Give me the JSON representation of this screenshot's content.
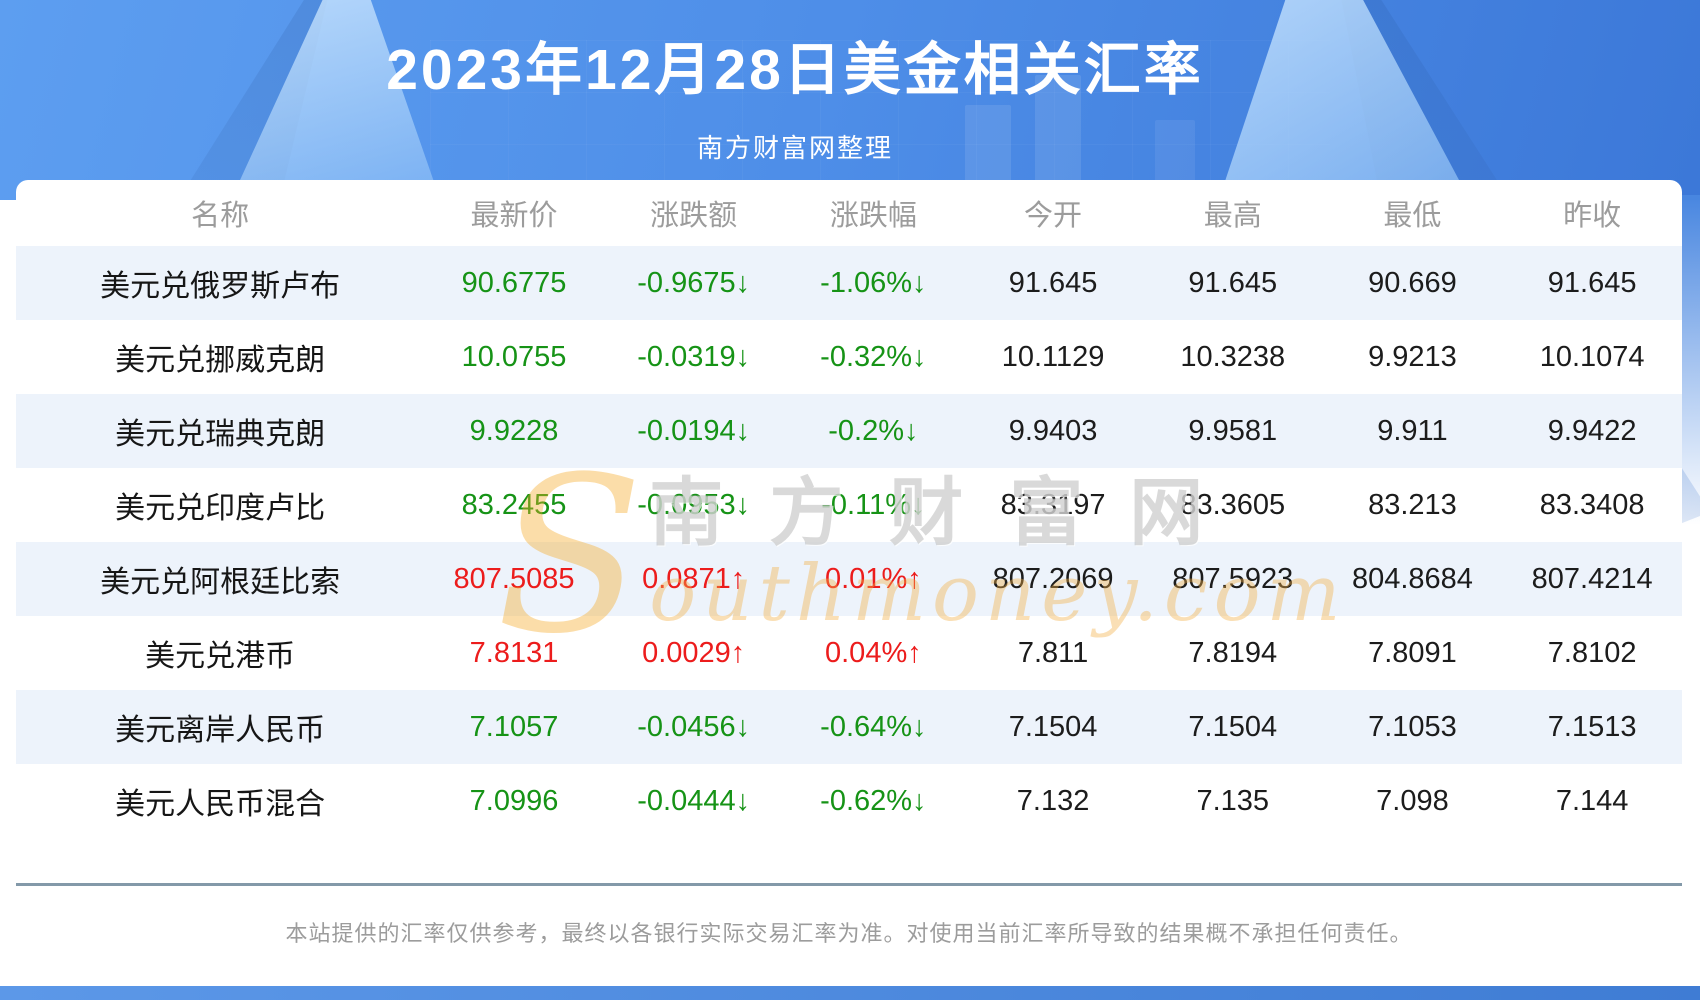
{
  "header": {
    "title": "2023年12月28日美金相关汇率",
    "subtitle": "南方财富网整理"
  },
  "chart_data": {
    "type": "table",
    "title": "2023年12月28日美金相关汇率",
    "columns": [
      "名称",
      "最新价",
      "涨跌额",
      "涨跌幅",
      "今开",
      "最高",
      "最低",
      "昨收"
    ],
    "rows": [
      {
        "name": "美元兑俄罗斯卢布",
        "last": "90.6775",
        "change": "-0.9675↓",
        "pct": "-1.06%↓",
        "open": "91.645",
        "high": "91.645",
        "low": "90.669",
        "prev": "91.645",
        "trend": "down"
      },
      {
        "name": "美元兑挪威克朗",
        "last": "10.0755",
        "change": "-0.0319↓",
        "pct": "-0.32%↓",
        "open": "10.1129",
        "high": "10.3238",
        "low": "9.9213",
        "prev": "10.1074",
        "trend": "down"
      },
      {
        "name": "美元兑瑞典克朗",
        "last": "9.9228",
        "change": "-0.0194↓",
        "pct": "-0.2%↓",
        "open": "9.9403",
        "high": "9.9581",
        "low": "9.911",
        "prev": "9.9422",
        "trend": "down"
      },
      {
        "name": "美元兑印度卢比",
        "last": "83.2455",
        "change": "-0.0953↓",
        "pct": "-0.11%↓",
        "open": "83.3197",
        "high": "83.3605",
        "low": "83.213",
        "prev": "83.3408",
        "trend": "down"
      },
      {
        "name": "美元兑阿根廷比索",
        "last": "807.5085",
        "change": "0.0871↑",
        "pct": "0.01%↑",
        "open": "807.2069",
        "high": "807.5923",
        "low": "804.8684",
        "prev": "807.4214",
        "trend": "up"
      },
      {
        "name": "美元兑港币",
        "last": "7.8131",
        "change": "0.0029↑",
        "pct": "0.04%↑",
        "open": "7.811",
        "high": "7.8194",
        "low": "7.8091",
        "prev": "7.8102",
        "trend": "up"
      },
      {
        "name": "美元离岸人民币",
        "last": "7.1057",
        "change": "-0.0456↓",
        "pct": "-0.64%↓",
        "open": "7.1504",
        "high": "7.1504",
        "low": "7.1053",
        "prev": "7.1513",
        "trend": "down"
      },
      {
        "name": "美元人民币混合",
        "last": "7.0996",
        "change": "-0.0444↓",
        "pct": "-0.62%↓",
        "open": "7.132",
        "high": "7.135",
        "low": "7.098",
        "prev": "7.144",
        "trend": "down"
      }
    ]
  },
  "watermark": {
    "big_letter": "S",
    "cjk": "南方财富网",
    "latin": "outhmoney.com"
  },
  "footer": {
    "disclaimer": "本站提供的汇率仅供参考，最终以各银行实际交易汇率为准。对使用当前汇率所导致的结果概不承担任何责任。"
  },
  "colors": {
    "up": "#ec1c1c",
    "down": "#169316",
    "ink": "#1c1c1c",
    "muted": "#9c9c9c",
    "stripe": "#edf3fb",
    "divider": "#8399a9",
    "banner_top": "#5d9ef0",
    "banner_deep": "#3c78d8"
  }
}
